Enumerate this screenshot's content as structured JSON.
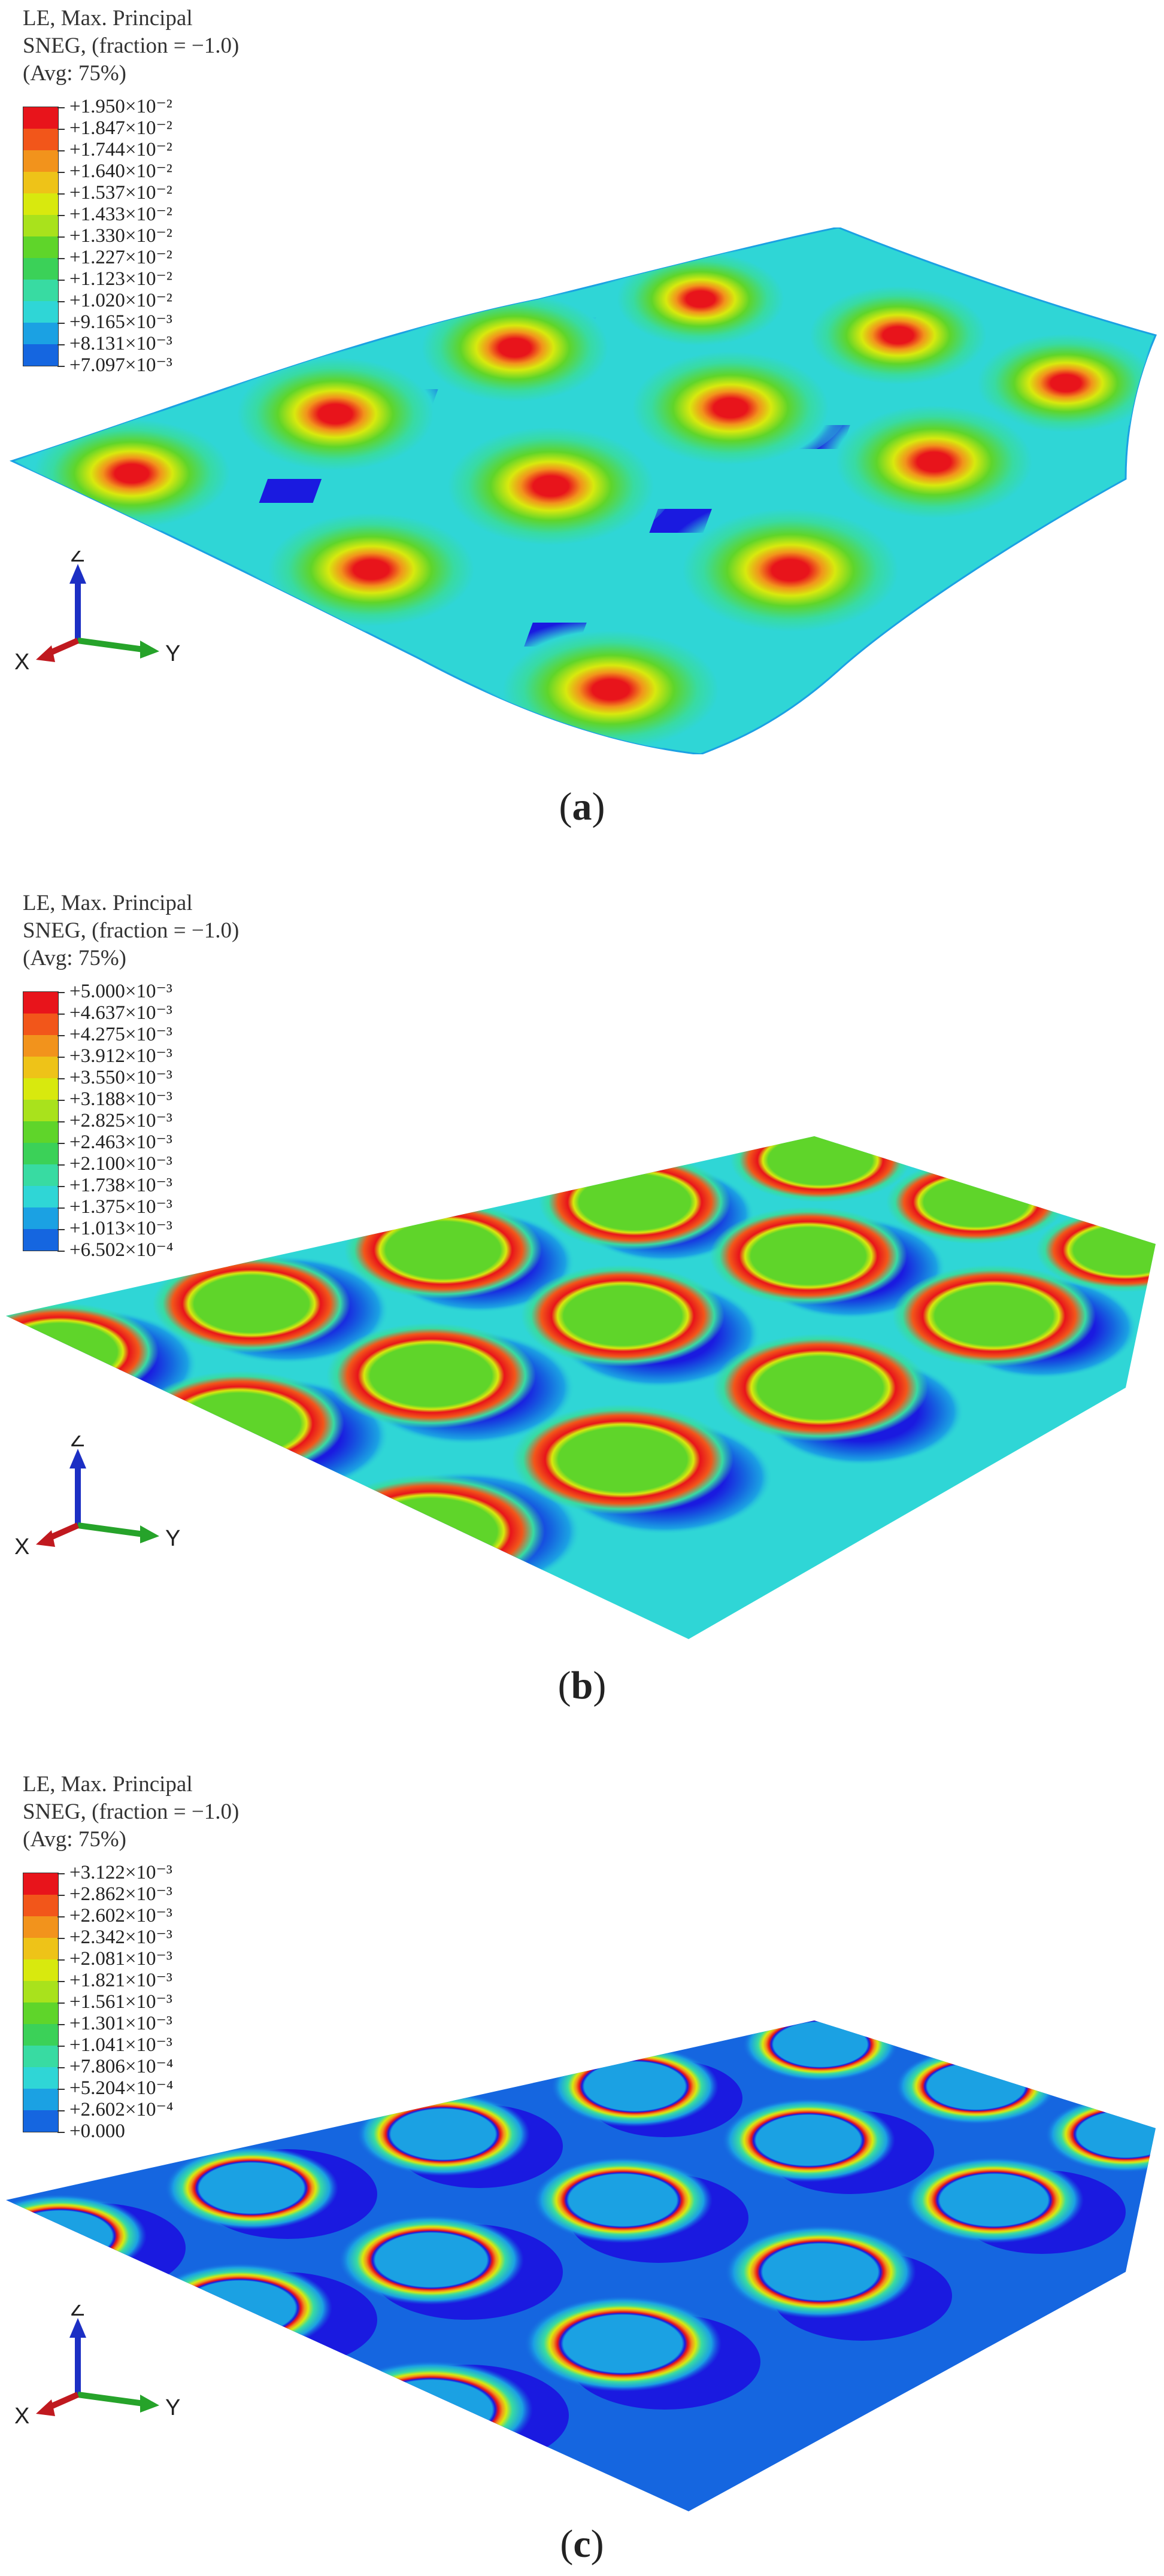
{
  "panels": [
    {
      "id": "a",
      "legend_lines": [
        "LE, Max. Principal",
        "SNEG, (fraction = −1.0)",
        "(Avg: 75%)"
      ],
      "legend_values": [
        "+1.950×10⁻²",
        "+1.847×10⁻²",
        "+1.744×10⁻²",
        "+1.640×10⁻²",
        "+1.537×10⁻²",
        "+1.433×10⁻²",
        "+1.330×10⁻²",
        "+1.227×10⁻²",
        "+1.123×10⁻²",
        "+1.020×10⁻²",
        "+9.165×10⁻³",
        "+8.131×10⁻³",
        "+7.097×10⁻³"
      ],
      "caption": "a"
    },
    {
      "id": "b",
      "legend_lines": [
        "LE, Max. Principal",
        "SNEG, (fraction = −1.0)",
        "(Avg: 75%)"
      ],
      "legend_values": [
        "+5.000×10⁻³",
        "+4.637×10⁻³",
        "+4.275×10⁻³",
        "+3.912×10⁻³",
        "+3.550×10⁻³",
        "+3.188×10⁻³",
        "+2.825×10⁻³",
        "+2.463×10⁻³",
        "+2.100×10⁻³",
        "+1.738×10⁻³",
        "+1.375×10⁻³",
        "+1.013×10⁻³",
        "+6.502×10⁻⁴"
      ],
      "caption": "b"
    },
    {
      "id": "c",
      "legend_lines": [
        "LE, Max. Principal",
        "SNEG, (fraction = −1.0)",
        "(Avg: 75%)"
      ],
      "legend_values": [
        "+3.122×10⁻³",
        "+2.862×10⁻³",
        "+2.602×10⁻³",
        "+2.342×10⁻³",
        "+2.081×10⁻³",
        "+1.821×10⁻³",
        "+1.561×10⁻³",
        "+1.301×10⁻³",
        "+1.041×10⁻³",
        "+7.806×10⁻⁴",
        "+5.204×10⁻⁴",
        "+2.602×10⁻⁴",
        "+0.000"
      ],
      "caption": "c"
    }
  ],
  "axis_labels": {
    "z": "Z",
    "x": "X",
    "y": "Y"
  },
  "colors": {
    "contour_scale": [
      "#e8141b",
      "#f2561a",
      "#f2931c",
      "#eec318",
      "#d8e90e",
      "#a9e21c",
      "#5fd52a",
      "#3bd158",
      "#38dba2",
      "#2fd6d6",
      "#1ba1e3",
      "#1566e0",
      "#1a1ae0"
    ],
    "axis_z": "#1c2fc4",
    "axis_x": "#c0191f",
    "axis_y": "#26a32a"
  }
}
